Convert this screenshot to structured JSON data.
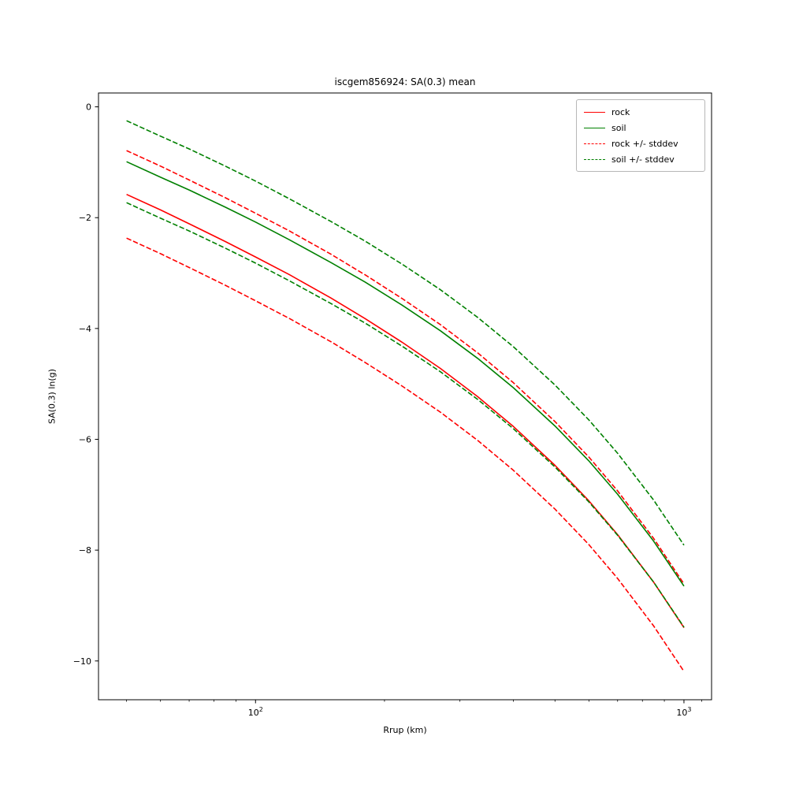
{
  "figure": {
    "title": "iscgem856924: SA(0.3) mean",
    "xlabel": "Rrup (km)",
    "ylabel": "SA(0.3) ln(g)"
  },
  "legend": {
    "items": [
      {
        "label": "rock",
        "color": "#ff0000",
        "dash": "solid"
      },
      {
        "label": "soil",
        "color": "#008000",
        "dash": "solid"
      },
      {
        "label": "rock +/- stddev",
        "color": "#ff0000",
        "dash": "dashed"
      },
      {
        "label": "soil +/- stddev",
        "color": "#008000",
        "dash": "dashed"
      }
    ]
  },
  "chart_data": {
    "type": "line",
    "title": "iscgem856924: SA(0.3) mean",
    "xlabel": "Rrup (km)",
    "ylabel": "SA(0.3) ln(g)",
    "x_scale": "log",
    "y_scale": "linear",
    "xlim": [
      43,
      1160
    ],
    "ylim": [
      -10.7,
      0.25
    ],
    "grid": false,
    "legend_position": "upper right",
    "x": [
      50,
      60,
      70,
      85,
      100,
      120,
      150,
      180,
      220,
      270,
      330,
      400,
      500,
      600,
      700,
      850,
      1000
    ],
    "series": [
      {
        "name": "rock",
        "color": "#ff0000",
        "style": "solid",
        "values": [
          -1.58,
          -1.86,
          -2.11,
          -2.43,
          -2.71,
          -3.03,
          -3.45,
          -3.82,
          -4.25,
          -4.72,
          -5.23,
          -5.77,
          -6.47,
          -7.11,
          -7.72,
          -8.58,
          -9.4
        ]
      },
      {
        "name": "soil",
        "color": "#008000",
        "style": "solid",
        "values": [
          -0.99,
          -1.27,
          -1.5,
          -1.81,
          -2.08,
          -2.4,
          -2.81,
          -3.16,
          -3.58,
          -4.04,
          -4.54,
          -5.07,
          -5.76,
          -6.39,
          -6.99,
          -7.84,
          -8.65
        ]
      },
      {
        "name": "rock plus stddev",
        "color": "#ff0000",
        "style": "dashed",
        "values": [
          -0.79,
          -1.07,
          -1.32,
          -1.64,
          -1.92,
          -2.24,
          -2.66,
          -3.03,
          -3.46,
          -3.93,
          -4.44,
          -4.98,
          -5.68,
          -6.32,
          -6.93,
          -7.79,
          -8.61
        ]
      },
      {
        "name": "rock minus stddev",
        "color": "#ff0000",
        "style": "dashed",
        "values": [
          -2.37,
          -2.65,
          -2.9,
          -3.22,
          -3.5,
          -3.82,
          -4.24,
          -4.61,
          -5.04,
          -5.51,
          -6.02,
          -6.56,
          -7.26,
          -7.9,
          -8.51,
          -9.37,
          -10.19
        ]
      },
      {
        "name": "soil plus stddev",
        "color": "#008000",
        "style": "dashed",
        "values": [
          -0.25,
          -0.53,
          -0.76,
          -1.07,
          -1.34,
          -1.66,
          -2.07,
          -2.42,
          -2.84,
          -3.3,
          -3.8,
          -4.33,
          -5.02,
          -5.65,
          -6.25,
          -7.1,
          -7.91
        ]
      },
      {
        "name": "soil minus stddev",
        "color": "#008000",
        "style": "dashed",
        "values": [
          -1.73,
          -2.01,
          -2.24,
          -2.55,
          -2.82,
          -3.14,
          -3.55,
          -3.9,
          -4.32,
          -4.78,
          -5.28,
          -5.81,
          -6.5,
          -7.13,
          -7.73,
          -8.58,
          -9.39
        ]
      }
    ],
    "y_ticks": [
      0,
      -2,
      -4,
      -6,
      -8,
      -10
    ],
    "x_ticks": [
      {
        "value": 100,
        "label": "10^2"
      },
      {
        "value": 1000,
        "label": "10^3"
      }
    ],
    "x_minor_ticks": [
      50,
      60,
      70,
      80,
      90,
      200,
      300,
      400,
      500,
      600,
      700,
      800,
      900,
      1100
    ]
  }
}
